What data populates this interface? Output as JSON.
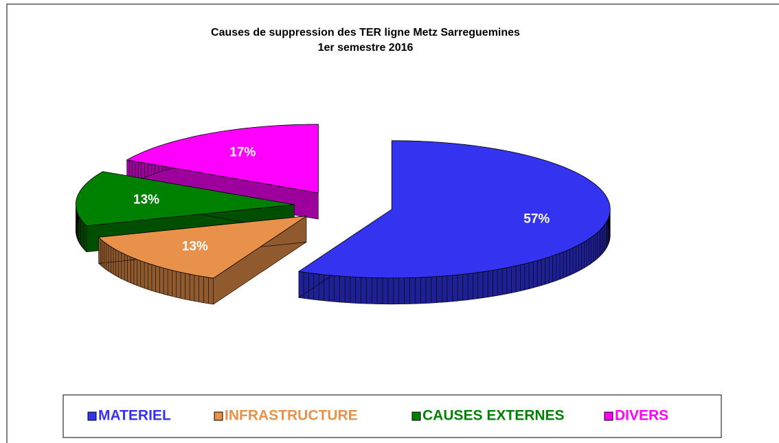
{
  "chart_data": {
    "type": "pie3d",
    "title": "Causes de suppression des TER ligne Metz Sarreguemines",
    "subtitle": "1er semestre 2016",
    "categories": [
      "MATERIEL",
      "INFRASTRUCTURE",
      "CAUSES EXTERNES",
      "DIVERS"
    ],
    "values": [
      57,
      13,
      13,
      17
    ],
    "value_labels": [
      "57%",
      "13%",
      "13%",
      "17%"
    ],
    "colors": [
      "#3434f0",
      "#e8914a",
      "#008000",
      "#ff00ff"
    ],
    "legend": "bottom"
  }
}
